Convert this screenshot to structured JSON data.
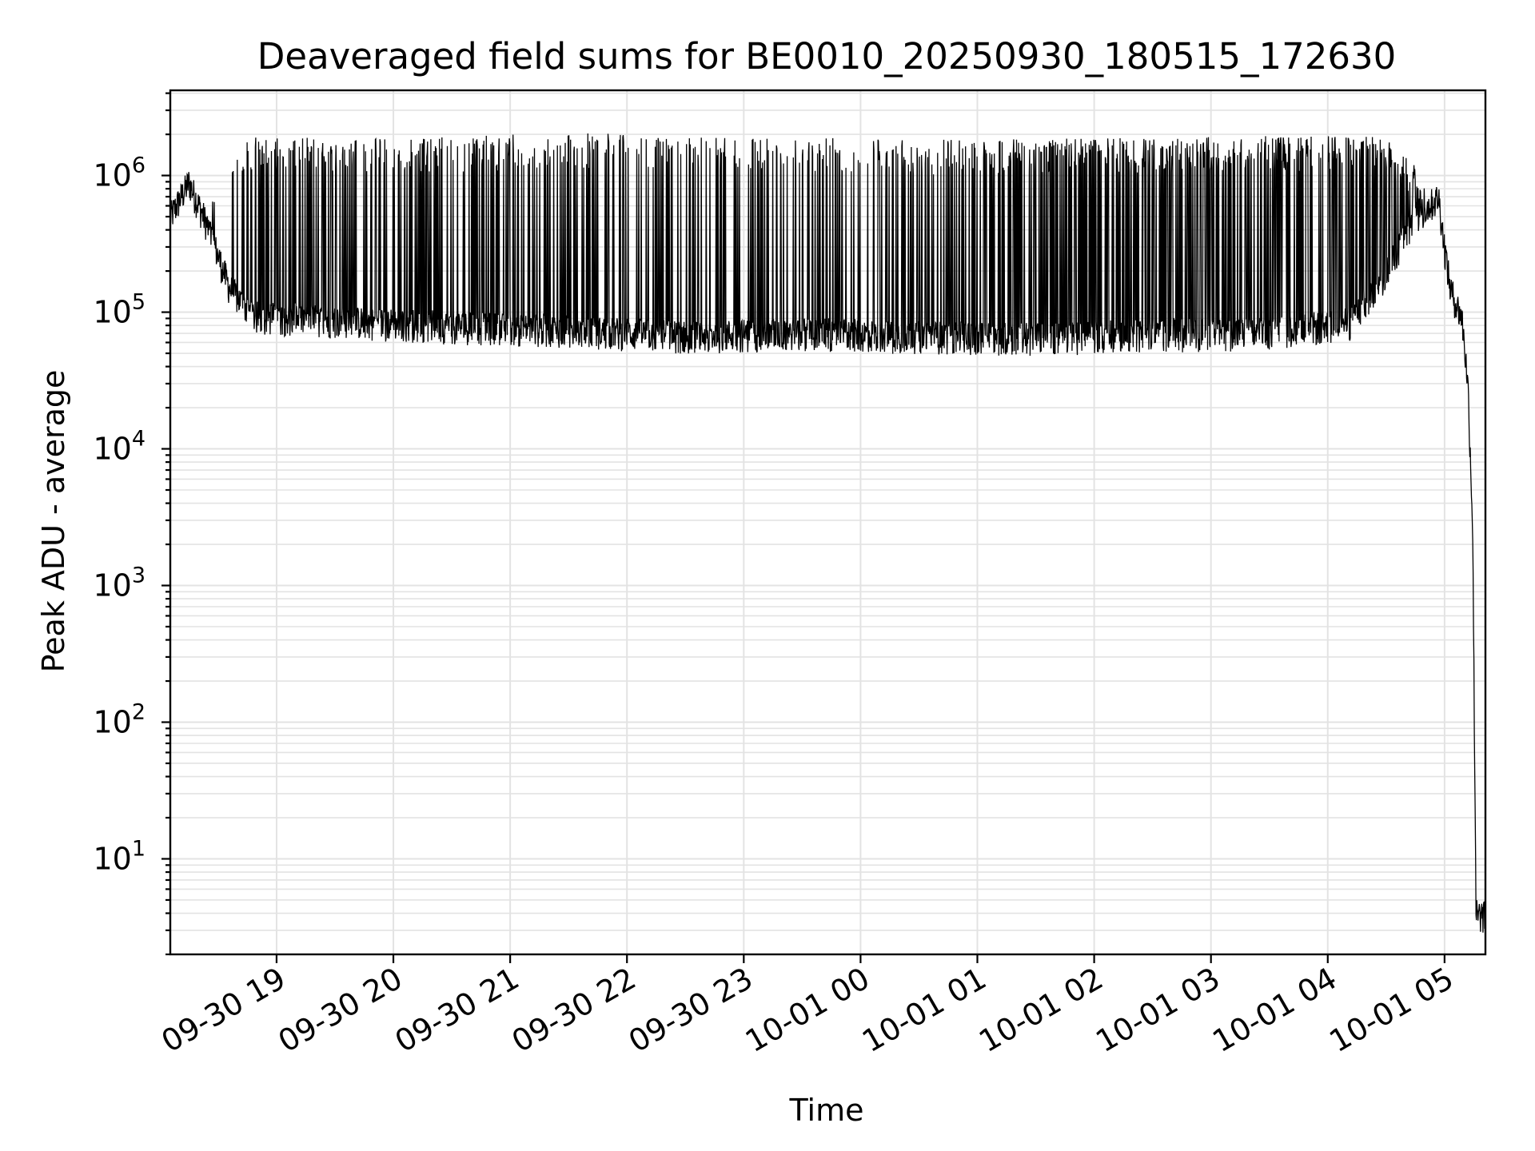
{
  "chart_data": {
    "type": "line",
    "title": "Deaveraged field sums for BE0010_20250930_180515_172630",
    "xlabel": "Time",
    "ylabel": "Peak ADU - average",
    "yscale": "log",
    "ylim": [
      2,
      4200000
    ],
    "xlim_hours": [
      18.09,
      29.35
    ],
    "grid": true,
    "line_color": "#000000",
    "x_ticks": [
      {
        "label": "09-30 19",
        "hour": 19
      },
      {
        "label": "09-30 20",
        "hour": 20
      },
      {
        "label": "09-30 21",
        "hour": 21
      },
      {
        "label": "09-30 22",
        "hour": 22
      },
      {
        "label": "09-30 23",
        "hour": 23
      },
      {
        "label": "10-01 00",
        "hour": 24
      },
      {
        "label": "10-01 01",
        "hour": 25
      },
      {
        "label": "10-01 02",
        "hour": 26
      },
      {
        "label": "10-01 03",
        "hour": 27
      },
      {
        "label": "10-01 04",
        "hour": 28
      },
      {
        "label": "10-01 05",
        "hour": 29
      }
    ],
    "y_ticks": [
      {
        "base": "10",
        "exp": "1",
        "value": 10
      },
      {
        "base": "10",
        "exp": "2",
        "value": 100
      },
      {
        "base": "10",
        "exp": "3",
        "value": 1000
      },
      {
        "base": "10",
        "exp": "4",
        "value": 10000
      },
      {
        "base": "10",
        "exp": "5",
        "value": 100000
      },
      {
        "base": "10",
        "exp": "6",
        "value": 1000000
      }
    ],
    "series": [
      {
        "name": "field sums",
        "envelope": [
          {
            "hour": 18.09,
            "base": 500000,
            "peak": 700000
          },
          {
            "hour": 18.25,
            "base": 900000,
            "peak": 1200000
          },
          {
            "hour": 18.4,
            "base": 450000,
            "peak": 800000
          },
          {
            "hour": 18.6,
            "base": 150000,
            "peak": 1400000
          },
          {
            "hour": 18.8,
            "base": 95000,
            "peak": 1900000
          },
          {
            "hour": 19.5,
            "base": 88000,
            "peak": 1900000
          },
          {
            "hour": 20.5,
            "base": 80000,
            "peak": 1900000
          },
          {
            "hour": 21.5,
            "base": 75000,
            "peak": 2100000
          },
          {
            "hour": 22.5,
            "base": 68000,
            "peak": 1900000
          },
          {
            "hour": 23.5,
            "base": 72000,
            "peak": 1900000
          },
          {
            "hour": 24.5,
            "base": 68000,
            "peak": 1850000
          },
          {
            "hour": 25.5,
            "base": 66000,
            "peak": 1850000
          },
          {
            "hour": 26.5,
            "base": 70000,
            "peak": 1900000
          },
          {
            "hour": 27.5,
            "base": 72000,
            "peak": 1950000
          },
          {
            "hour": 28.2,
            "base": 85000,
            "peak": 1950000
          },
          {
            "hour": 28.5,
            "base": 200000,
            "peak": 1900000
          },
          {
            "hour": 28.75,
            "base": 500000,
            "peak": 1200000
          },
          {
            "hour": 28.95,
            "base": 700000,
            "peak": 1050000
          },
          {
            "hour": 29.0,
            "base": 300000,
            "peak": 600000
          },
          {
            "hour": 29.05,
            "base": 150000,
            "peak": 200000
          },
          {
            "hour": 29.15,
            "base": 90000,
            "peak": 110000
          },
          {
            "hour": 29.2,
            "base": 30000,
            "peak": 40000
          },
          {
            "hour": 29.24,
            "base": 3000,
            "peak": 5000
          },
          {
            "hour": 29.27,
            "base": 4,
            "peak": 10
          },
          {
            "hour": 29.35,
            "base": 3.8,
            "peak": 4.2
          }
        ]
      }
    ]
  }
}
